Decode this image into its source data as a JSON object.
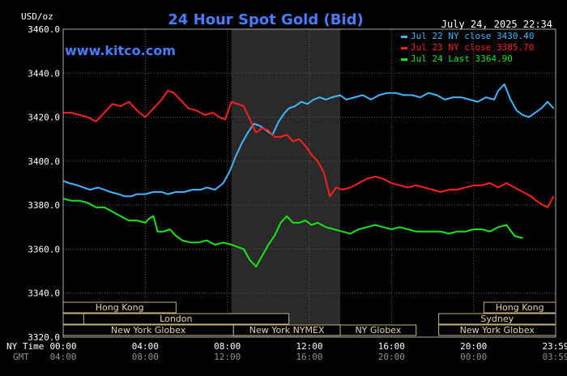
{
  "chart_data": {
    "type": "line",
    "title": "24 Hour Spot Gold (Bid)",
    "unit_label": "USD/oz",
    "watermark": "www.kitco.com",
    "timestamp": "July 24, 2025 22:34",
    "ylim": [
      3320,
      3460
    ],
    "yticks": [
      "3460.0",
      "3440.0",
      "3420.0",
      "3400.0",
      "3380.0",
      "3360.0",
      "3340.0",
      "3320.0"
    ],
    "xlim": [
      0,
      24
    ],
    "row_labels": {
      "ny": "NY Time",
      "gmt": "GMT"
    },
    "xticks": [
      {
        "x": 0,
        "ny": "00:00",
        "gmt": "04:00"
      },
      {
        "x": 4,
        "ny": "04:00",
        "gmt": "08:00"
      },
      {
        "x": 8,
        "ny": "08:00",
        "gmt": "12:00"
      },
      {
        "x": 12,
        "ny": "12:00",
        "gmt": "16:00"
      },
      {
        "x": 16,
        "ny": "16:00",
        "gmt": "20:00"
      },
      {
        "x": 20,
        "ny": "20:00",
        "gmt": "00:00"
      },
      {
        "x": 24,
        "ny": "23:59",
        "gmt": "03:59"
      }
    ],
    "shaded_range": [
      8.2,
      13.5
    ],
    "sessions": [
      {
        "label": "Hong Kong",
        "row": 0,
        "start": -4,
        "end": 5.5
      },
      {
        "label": "London",
        "row": 1,
        "start": 0,
        "end": 11
      },
      {
        "label": "",
        "row": 1,
        "start": 0,
        "end": 1
      },
      {
        "label": "New York Globex",
        "row": 2,
        "start": 0,
        "end": 8.3
      },
      {
        "label": "New York NYMEX",
        "row": 2,
        "start": 8.3,
        "end": 13.5
      },
      {
        "label": "NY Globex",
        "row": 2,
        "start": 13.5,
        "end": 17.2
      },
      {
        "label": "Hong Kong",
        "row": 0,
        "start": 20.5,
        "end": 24.2
      },
      {
        "label": "Sydney",
        "row": 1,
        "start": 18.3,
        "end": 24.2
      },
      {
        "label": "New York Globex",
        "row": 2,
        "start": 18.3,
        "end": 24.2
      }
    ],
    "series": [
      {
        "name": "Jul 22 NY close 3430.40",
        "color": "#3fb6ff",
        "x": [
          0,
          0.3,
          0.7,
          1,
          1.3,
          1.7,
          2,
          2.3,
          2.7,
          3,
          3.3,
          3.6,
          4,
          4.4,
          4.8,
          5.1,
          5.5,
          5.9,
          6.3,
          6.7,
          7,
          7.4,
          7.8,
          8.1,
          8.4,
          8.7,
          9,
          9.3,
          9.6,
          9.9,
          10.2,
          10.5,
          10.8,
          11,
          11.3,
          11.6,
          11.9,
          12.2,
          12.5,
          12.8,
          13.1,
          13.5,
          13.8,
          14.2,
          14.6,
          15,
          15.4,
          15.8,
          16.2,
          16.6,
          17,
          17.4,
          17.8,
          18.2,
          18.6,
          19,
          19.4,
          19.8,
          20.2,
          20.6,
          21,
          21.2,
          21.5,
          21.8,
          22.1,
          22.4,
          22.7,
          23,
          23.3,
          23.6,
          23.9
        ],
        "y": [
          3391,
          3390,
          3389,
          3388,
          3387,
          3388,
          3387,
          3386,
          3385,
          3384,
          3384,
          3385,
          3385,
          3386,
          3386,
          3385,
          3386,
          3386,
          3387,
          3387,
          3388,
          3387,
          3390,
          3395,
          3402,
          3408,
          3413,
          3417,
          3416,
          3414,
          3412,
          3418,
          3422,
          3424,
          3425,
          3427,
          3426,
          3428,
          3429,
          3428,
          3429,
          3430,
          3428,
          3429,
          3430,
          3428,
          3430,
          3431,
          3431,
          3430,
          3430,
          3429,
          3431,
          3430,
          3428,
          3429,
          3429,
          3428,
          3427,
          3429,
          3428,
          3432,
          3435,
          3428,
          3423,
          3421,
          3420,
          3422,
          3424,
          3427,
          3424
        ]
      },
      {
        "name": "Jul 23 NY close 3385.70",
        "color": "#ff1f1f",
        "x": [
          0,
          0.4,
          0.8,
          1.2,
          1.6,
          2,
          2.4,
          2.8,
          3.2,
          3.6,
          4,
          4.4,
          4.8,
          5.1,
          5.4,
          5.7,
          6.1,
          6.5,
          6.9,
          7.3,
          7.6,
          7.9,
          8.2,
          8.5,
          8.8,
          9.1,
          9.4,
          9.7,
          10,
          10.3,
          10.6,
          10.9,
          11.2,
          11.5,
          11.8,
          12.1,
          12.4,
          12.7,
          13,
          13.3,
          13.6,
          14,
          14.4,
          14.8,
          15.2,
          15.6,
          16,
          16.4,
          16.8,
          17.2,
          17.6,
          18,
          18.4,
          18.8,
          19.2,
          19.6,
          20,
          20.4,
          20.8,
          21.2,
          21.6,
          22,
          22.4,
          22.8,
          23.2,
          23.6,
          23.9
        ],
        "y": [
          3422,
          3422,
          3421,
          3420,
          3418,
          3422,
          3426,
          3425,
          3427,
          3423,
          3420,
          3424,
          3428,
          3432,
          3431,
          3428,
          3424,
          3423,
          3421,
          3422,
          3420,
          3419,
          3427,
          3426,
          3425,
          3419,
          3413,
          3415,
          3414,
          3411,
          3411,
          3412,
          3409,
          3410,
          3407,
          3403,
          3400,
          3395,
          3384,
          3388,
          3387,
          3388,
          3390,
          3392,
          3393,
          3392,
          3390,
          3389,
          3388,
          3389,
          3388,
          3387,
          3386,
          3387,
          3387,
          3388,
          3389,
          3389,
          3390,
          3388,
          3390,
          3388,
          3386,
          3384,
          3381,
          3379,
          3384
        ]
      },
      {
        "name": "Jul 24 Last 3364.90",
        "color": "#19e619",
        "x": [
          0,
          0.4,
          0.8,
          1.2,
          1.6,
          2,
          2.4,
          2.8,
          3.2,
          3.6,
          4,
          4.2,
          4.4,
          4.6,
          4.9,
          5.2,
          5.5,
          5.8,
          6.2,
          6.6,
          7,
          7.4,
          7.8,
          8.2,
          8.5,
          8.8,
          9.1,
          9.4,
          9.7,
          10,
          10.3,
          10.6,
          10.9,
          11.2,
          11.5,
          11.8,
          12.1,
          12.4,
          12.8,
          13.2,
          13.6,
          14,
          14.4,
          14.8,
          15.2,
          15.6,
          16,
          16.4,
          16.8,
          17.2,
          17.6,
          18,
          18.4,
          18.8,
          19.2,
          19.6,
          20,
          20.4,
          20.8,
          21.2,
          21.6,
          22,
          22.4
        ],
        "y": [
          3383,
          3382,
          3382,
          3381,
          3379,
          3379,
          3377,
          3375,
          3373,
          3373,
          3372,
          3374,
          3375,
          3368,
          3368,
          3369,
          3366,
          3364,
          3363,
          3363,
          3364,
          3362,
          3363,
          3362,
          3361,
          3360,
          3355,
          3352,
          3357,
          3362,
          3366,
          3372,
          3375,
          3372,
          3372,
          3373,
          3371,
          3372,
          3370,
          3369,
          3368,
          3367,
          3369,
          3370,
          3371,
          3370,
          3369,
          3370,
          3369,
          3368,
          3368,
          3368,
          3368,
          3367,
          3368,
          3368,
          3369,
          3369,
          3368,
          3370,
          3371,
          3366,
          3365
        ]
      }
    ]
  }
}
